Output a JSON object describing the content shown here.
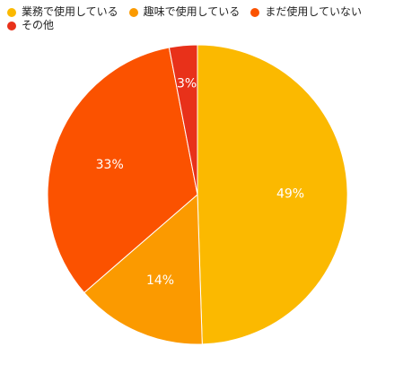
{
  "chart_data": {
    "type": "pie",
    "categories": [
      "業務で使用している",
      "趣味で使用している",
      "まだ使用していない",
      "その他"
    ],
    "values": [
      49,
      14,
      33,
      3
    ],
    "value_labels": [
      "49%",
      "14%",
      "33%",
      "3%"
    ],
    "colors": [
      "#FBB900",
      "#FB9A00",
      "#FB5200",
      "#E8311A"
    ],
    "legend_position": "top-left",
    "start_angle": "12 o'clock",
    "direction": "clockwise"
  }
}
